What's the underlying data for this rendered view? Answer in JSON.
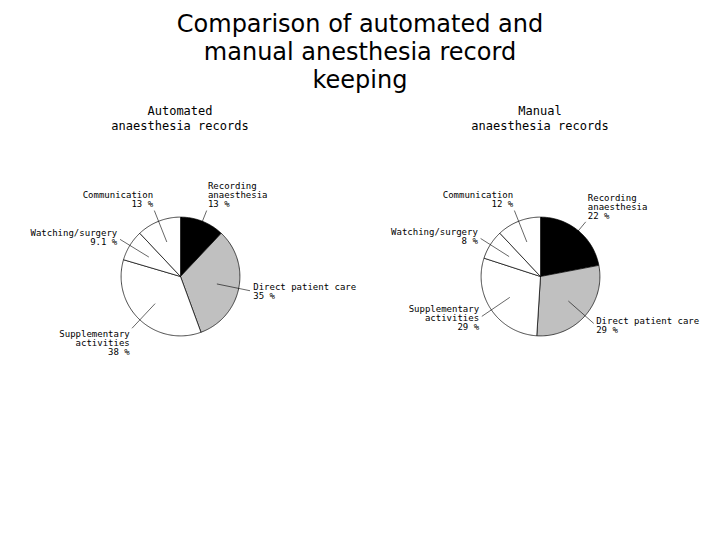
{
  "title": "Comparison of automated and\nmanual anesthesia record\nkeeping",
  "chart_data": [
    {
      "type": "pie",
      "title": "Automated\nanaesthesia records",
      "categories": [
        "Recording\nanaesthesia",
        "Direct patient care",
        "Supplementary\nactivities",
        "Watching/surgery",
        "Communication"
      ],
      "values": [
        13,
        35,
        38,
        9.1,
        13
      ],
      "value_labels": [
        "13 %",
        "35 %",
        "38 %",
        "9.1 %",
        "13 %"
      ],
      "data_labels": true,
      "colors": [
        "#000000",
        "#c0c0c0",
        "#ffffff",
        "#ffffff",
        "#ffffff"
      ]
    },
    {
      "type": "pie",
      "title": "Manual\nanaesthesia records",
      "categories": [
        "Recording\nanaesthesia",
        "Direct patient care",
        "Supplementary\nactivities",
        "Watching/surgery",
        "Communication"
      ],
      "values": [
        22,
        29,
        29,
        8,
        12
      ],
      "value_labels": [
        "22 %",
        "29 %",
        "29 %",
        "8 %",
        "12 %"
      ],
      "data_labels": true,
      "colors": [
        "#000000",
        "#c0c0c0",
        "#ffffff",
        "#ffffff",
        "#ffffff"
      ]
    }
  ]
}
